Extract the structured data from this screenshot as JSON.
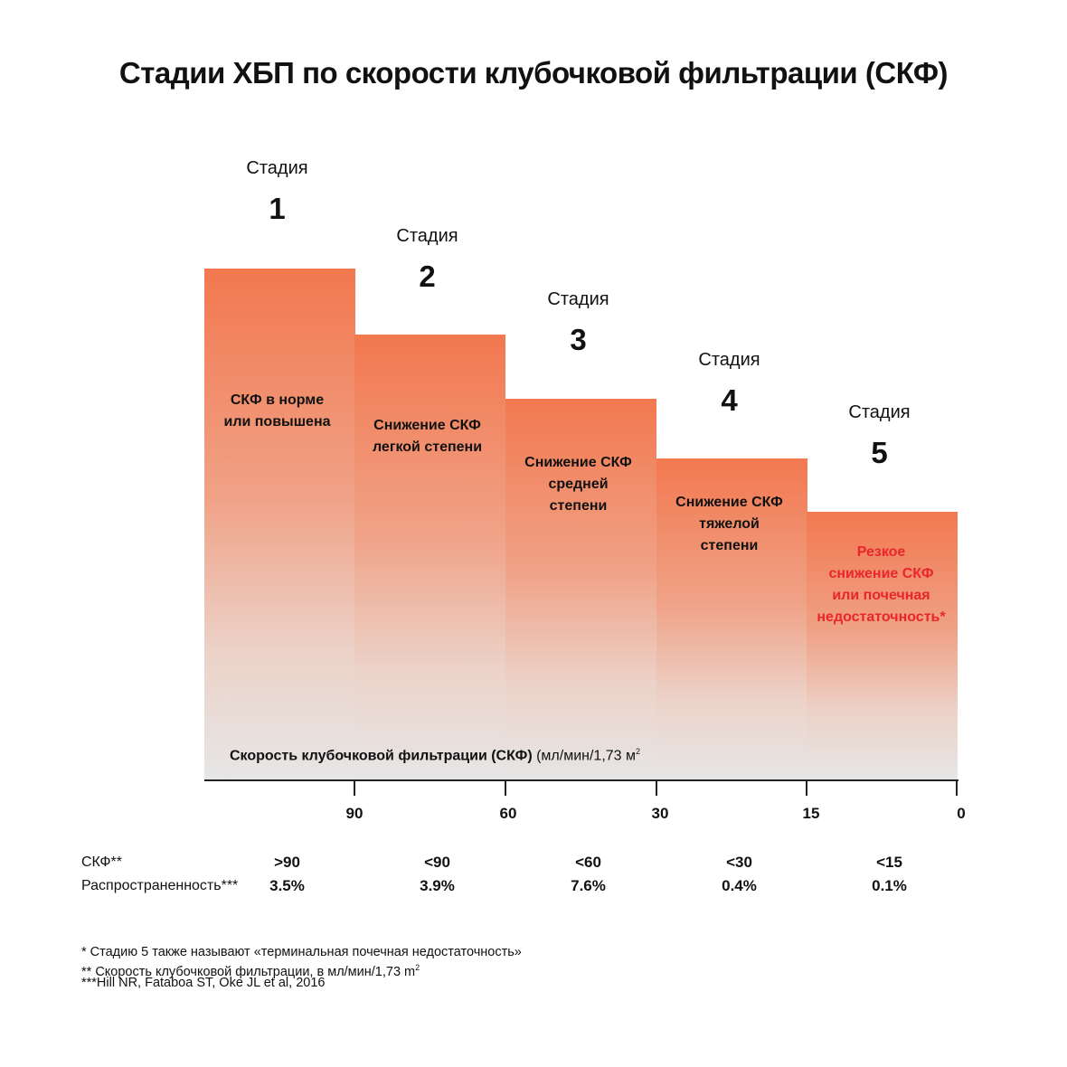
{
  "title": "Стадии ХБП по скорости клубочковой фильтрации (СКФ)",
  "chart_data": {
    "type": "bar",
    "title": "Стадии ХБП по скорости клубочковой фильтрации (СКФ)",
    "xlabel_bold": "Скорость клубочковой фильтрации (СКФ)",
    "xlabel_unit": "(мл/мин/1,73 м",
    "xlabel_unit_sup": "2",
    "x_ticks": [
      "90",
      "60",
      "30",
      "15",
      "0"
    ],
    "stage_word": "Стадия",
    "stages": [
      {
        "number": "1",
        "label_lines": [
          "СКФ в норме",
          "или повышена"
        ],
        "gfr": ">90",
        "prevalence": "3.5%"
      },
      {
        "number": "2",
        "label_lines": [
          "Снижение СКФ",
          "легкой степени"
        ],
        "gfr": "<90",
        "prevalence": "3.9%"
      },
      {
        "number": "3",
        "label_lines": [
          "Снижение СКФ",
          "средней",
          "степени"
        ],
        "gfr": "<60",
        "prevalence": "7.6%"
      },
      {
        "number": "4",
        "label_lines": [
          "Снижение СКФ",
          "тяжелой",
          "степени"
        ],
        "gfr": "<30",
        "prevalence": "0.4%"
      },
      {
        "number": "5",
        "label_lines": [
          "Резкое",
          "снижение СКФ",
          "или почечная",
          "недостаточность*"
        ],
        "gfr": "<15",
        "prevalence": "0.1%",
        "highlight": true
      }
    ],
    "colors": {
      "bar_top": "#f2784f",
      "bar_bottom": "#e6e6e6",
      "highlight_text": "#e8262b"
    }
  },
  "table": {
    "gfr_label": "СКФ**",
    "prevalence_label": "Распространенность***"
  },
  "footnotes": {
    "f1": "* Стадию 5 также называют «терминальная почечная недостаточность»",
    "f2": "** Скорость клубочковой фильтрации, в мл/мин/1,73 m",
    "f2_sup": "2",
    "f3": "***Hill NR, Fataboa ST, Oke JL et al, 2016"
  }
}
